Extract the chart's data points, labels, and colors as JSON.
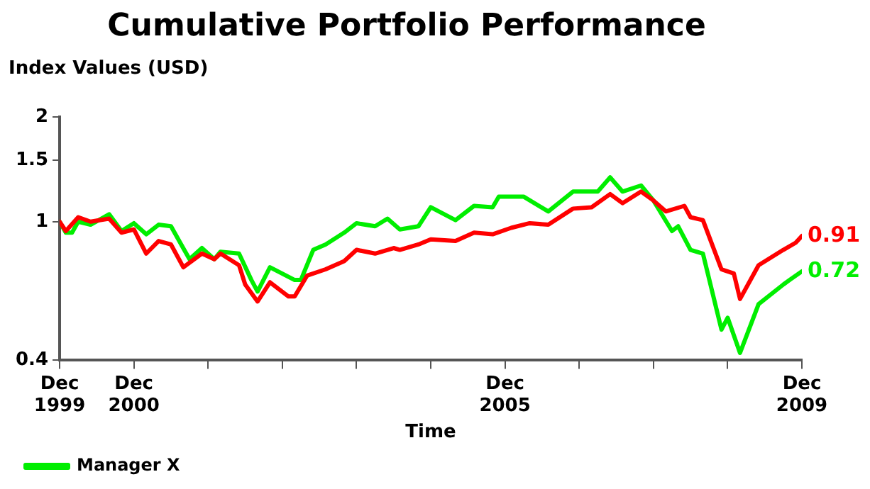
{
  "chart_data": {
    "type": "line",
    "title": "Cumulative Portfolio Performance",
    "ylabel": "Index Values (USD)",
    "xlabel": "Time",
    "log": "y",
    "grid": false,
    "legend": "bottom",
    "marker": "none",
    "line_style": "solid",
    "ylim": [
      0.4,
      2
    ],
    "yticks": [
      0.4,
      1,
      1.5,
      2
    ],
    "xlim": [
      "1999-12",
      "2009-12"
    ],
    "xticks": [
      {
        "value": "1999-12",
        "label": "Dec 1999"
      },
      {
        "value": "2000-12",
        "label": "Dec 2000"
      },
      {
        "value": "2001-12",
        "label": null
      },
      {
        "value": "2002-12",
        "label": null
      },
      {
        "value": "2003-12",
        "label": null
      },
      {
        "value": "2004-12",
        "label": null
      },
      {
        "value": "2005-12",
        "label": "Dec 2005"
      },
      {
        "value": "2006-12",
        "label": null
      },
      {
        "value": "2007-12",
        "label": null
      },
      {
        "value": "2008-12",
        "label": null
      },
      {
        "value": "2009-12",
        "label": "Dec 2009"
      }
    ],
    "series": [
      {
        "color": "#ff0000",
        "x": [
          "1999-12",
          "2000-01",
          "2000-03",
          "2000-05",
          "2000-08",
          "2000-10",
          "2000-12",
          "2001-02",
          "2001-04",
          "2001-06",
          "2001-08",
          "2001-11",
          "2002-01",
          "2002-02",
          "2002-05",
          "2002-06",
          "2002-08",
          "2002-10",
          "2003-01",
          "2003-02",
          "2003-04",
          "2003-07",
          "2003-10",
          "2003-12",
          "2004-03",
          "2004-06",
          "2004-07",
          "2004-10",
          "2004-12",
          "2005-04",
          "2005-07",
          "2005-10",
          "2006-01",
          "2006-04",
          "2006-07",
          "2006-11",
          "2007-02",
          "2007-05",
          "2007-07",
          "2007-10",
          "2007-12",
          "2008-02",
          "2008-05",
          "2008-06",
          "2008-08",
          "2008-11",
          "2009-01",
          "2009-02",
          "2009-05",
          "2009-09",
          "2009-11",
          "2009-12"
        ],
        "values": [
          1,
          0.94,
          1.03,
          1.0,
          1.02,
          0.93,
          0.95,
          0.81,
          0.88,
          0.86,
          0.74,
          0.81,
          0.78,
          0.81,
          0.75,
          0.66,
          0.59,
          0.67,
          0.61,
          0.61,
          0.7,
          0.73,
          0.77,
          0.83,
          0.81,
          0.84,
          0.83,
          0.86,
          0.89,
          0.88,
          0.93,
          0.92,
          0.96,
          0.99,
          0.98,
          1.09,
          1.1,
          1.2,
          1.13,
          1.22,
          1.15,
          1.07,
          1.11,
          1.03,
          1.01,
          0.73,
          0.71,
          0.6,
          0.75,
          0.83,
          0.87,
          0.91
        ],
        "value_labels": [
          null,
          null,
          null,
          null,
          null,
          null,
          null,
          null,
          null,
          null,
          null,
          null,
          null,
          null,
          null,
          null,
          null,
          null,
          null,
          null,
          null,
          null,
          null,
          null,
          null,
          null,
          null,
          null,
          null,
          null,
          null,
          null,
          null,
          null,
          null,
          null,
          null,
          null,
          null,
          null,
          null,
          null,
          null,
          null,
          null,
          null,
          null,
          null,
          null,
          null,
          null,
          "0.91"
        ]
      },
      {
        "name": "Manager X",
        "color": "#00ee00",
        "x": [
          "1999-12",
          "2000-01",
          "2000-02",
          "2000-03",
          "2000-05",
          "2000-08",
          "2000-10",
          "2000-12",
          "2001-02",
          "2001-04",
          "2001-06",
          "2001-09",
          "2001-11",
          "2002-01",
          "2002-02",
          "2002-05",
          "2002-07",
          "2002-08",
          "2002-10",
          "2003-02",
          "2003-03",
          "2003-05",
          "2003-07",
          "2003-10",
          "2003-12",
          "2004-03",
          "2004-05",
          "2004-07",
          "2004-10",
          "2004-12",
          "2005-04",
          "2005-07",
          "2005-10",
          "2005-11",
          "2006-03",
          "2006-07",
          "2006-11",
          "2007-03",
          "2007-05",
          "2007-07",
          "2007-10",
          "2007-12",
          "2008-03",
          "2008-04",
          "2008-06",
          "2008-08",
          "2008-11",
          "2008-12",
          "2009-02",
          "2009-05",
          "2009-09",
          "2009-10",
          "2009-12"
        ],
        "values": [
          1,
          0.93,
          0.93,
          1.0,
          0.98,
          1.05,
          0.94,
          0.99,
          0.92,
          0.98,
          0.97,
          0.78,
          0.84,
          0.78,
          0.82,
          0.81,
          0.68,
          0.63,
          0.74,
          0.68,
          0.68,
          0.83,
          0.86,
          0.93,
          0.99,
          0.97,
          1.02,
          0.95,
          0.97,
          1.1,
          1.01,
          1.11,
          1.1,
          1.18,
          1.18,
          1.07,
          1.22,
          1.22,
          1.34,
          1.22,
          1.27,
          1.15,
          0.94,
          0.97,
          0.83,
          0.81,
          0.49,
          0.53,
          0.42,
          0.58,
          0.66,
          0.68,
          0.72
        ],
        "value_labels": [
          null,
          null,
          null,
          null,
          null,
          null,
          null,
          null,
          null,
          null,
          null,
          null,
          null,
          null,
          null,
          null,
          null,
          null,
          null,
          null,
          null,
          null,
          null,
          null,
          null,
          null,
          null,
          null,
          null,
          null,
          null,
          null,
          null,
          null,
          null,
          null,
          null,
          null,
          null,
          null,
          null,
          null,
          null,
          null,
          null,
          null,
          null,
          null,
          null,
          null,
          null,
          null,
          "0.72"
        ]
      }
    ]
  }
}
